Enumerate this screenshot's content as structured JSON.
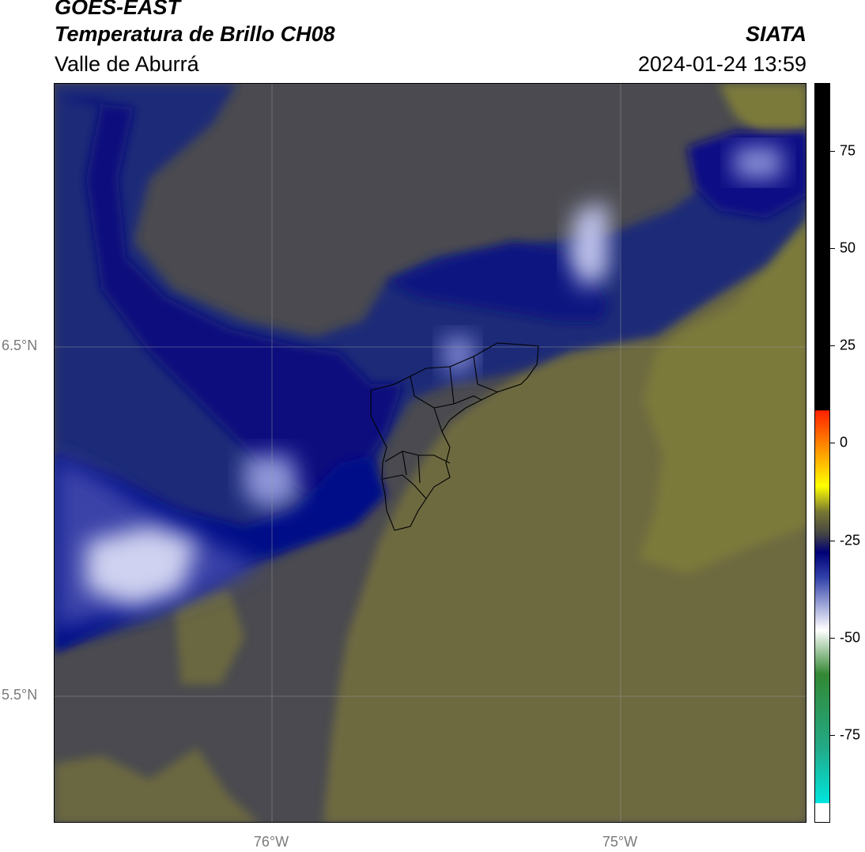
{
  "header": {
    "satellite": "GOES-EAST",
    "product": "Temperatura de Brillo CH08",
    "region": "Valle de Aburrá",
    "organization": "SIATA",
    "timestamp": "2024-01-24 13:59"
  },
  "map": {
    "lat_labels": [
      "6.5°N",
      "5.5°N"
    ],
    "lon_labels": [
      "76°W",
      "75°W"
    ]
  },
  "colorbar": {
    "ticks": [
      "75",
      "50",
      "25",
      "0",
      "-25",
      "-50",
      "-75"
    ],
    "colors": {
      "black": "#000000",
      "red": "#ff2200",
      "orange": "#ff8800",
      "yellow": "#ffff00",
      "olive": "#777733",
      "gray": "#444444",
      "navy": "#000077",
      "blue": "#3344aa",
      "lavender": "#aab0dd",
      "white": "#ffffff",
      "green": "#338833",
      "teal": "#22aa88",
      "cyan": "#00e5dd"
    }
  }
}
